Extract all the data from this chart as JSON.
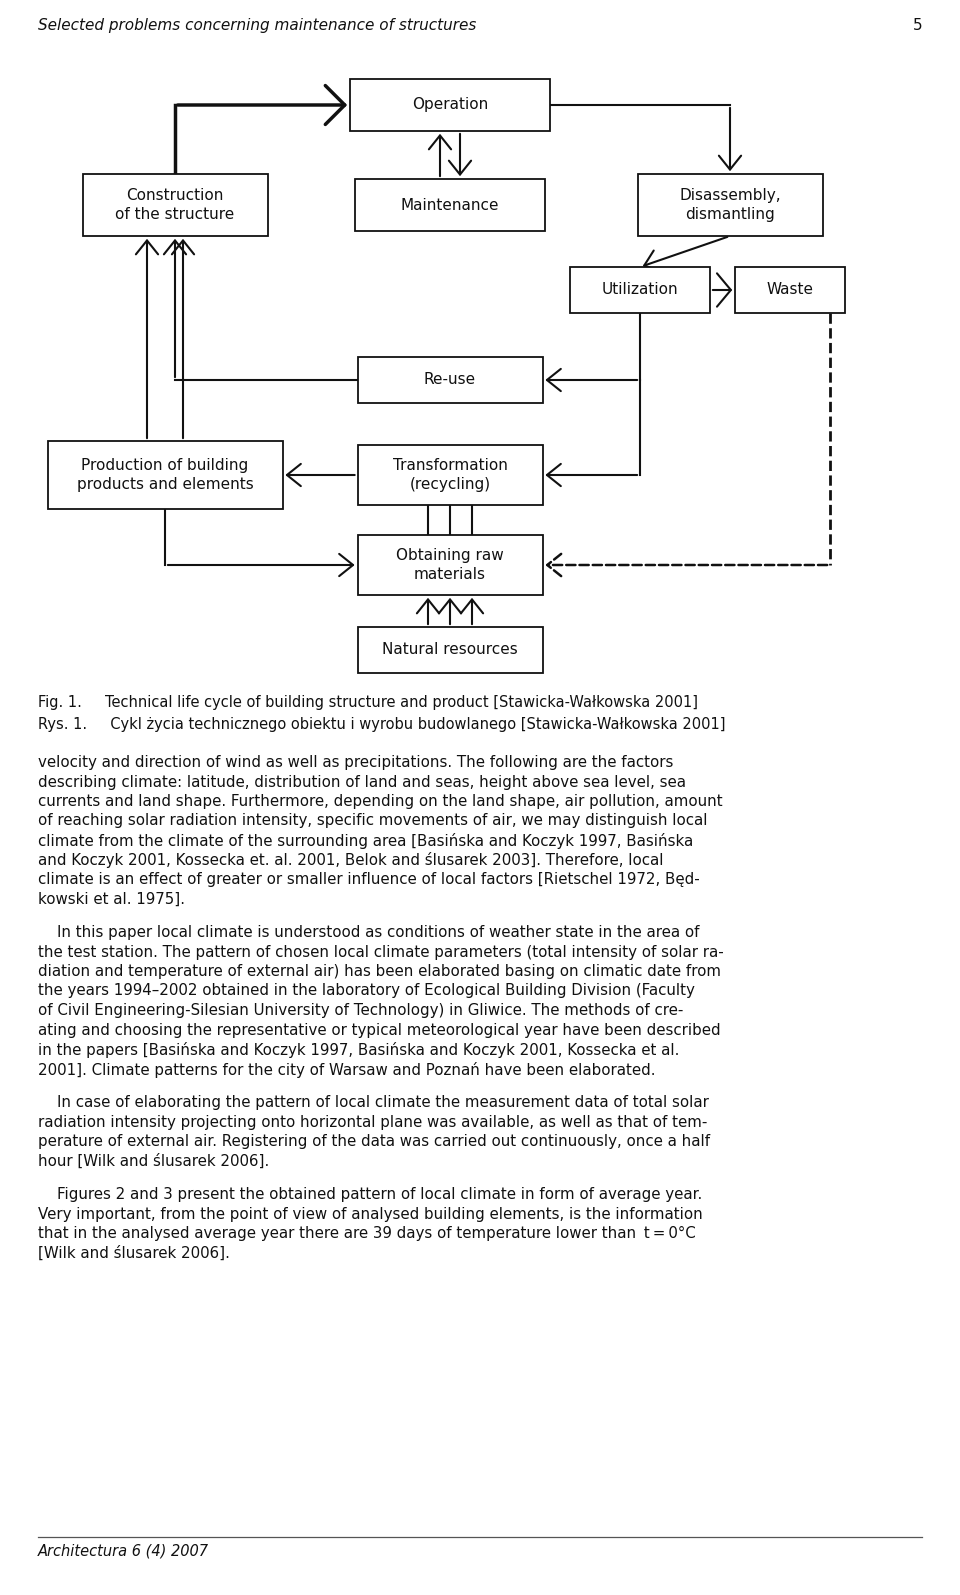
{
  "page_title": "Selected problems concerning maintenance of structures",
  "page_number": "5",
  "footer": "Architectura 6 (4) 2007",
  "background": "#ffffff",
  "text_color": "#111111",
  "box_edge_color": "#111111"
}
